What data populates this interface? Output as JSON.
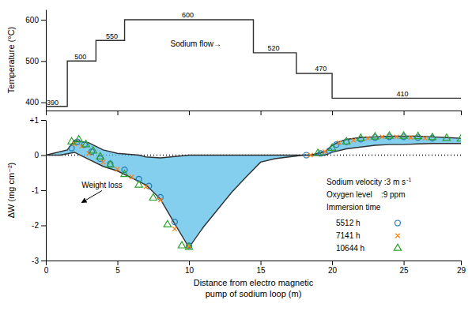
{
  "chart_data": [
    {
      "type": "line",
      "ylabel": "Temperature (°C)",
      "x": [
        0,
        1.5,
        1.5,
        3.5,
        3.5,
        5.5,
        5.5,
        8.0,
        8.0,
        14.5,
        14.5,
        17.5,
        17.5,
        20.0,
        20.0,
        22.5,
        22.5,
        29
      ],
      "series": [
        {
          "color": "#303030",
          "values": [
            390,
            390,
            500,
            500,
            550,
            550,
            600,
            600,
            600,
            600,
            520,
            520,
            470,
            470,
            410,
            410,
            410,
            410
          ]
        }
      ],
      "xlim": [
        0,
        29
      ],
      "xticks": [
        0,
        5,
        10,
        15,
        20,
        25,
        29
      ],
      "tick_labels": "y",
      "ylim": [
        380,
        625
      ],
      "yticks": [
        400,
        500,
        600
      ],
      "annotations": [
        {
          "text": "500",
          "x": 2.0,
          "y": 505
        },
        {
          "text": "550",
          "x": 4.2,
          "y": 555
        },
        {
          "text": "600",
          "x": 9.5,
          "y": 605
        },
        {
          "text": "520",
          "x": 15.5,
          "y": 525
        },
        {
          "text": "470",
          "x": 18.8,
          "y": 475
        },
        {
          "text": "410",
          "x": 24.5,
          "y": 415
        },
        {
          "text": "390",
          "x": 0.05,
          "y": 393
        },
        {
          "text": "Sodium flow→"
        }
      ]
    },
    {
      "type": "scatter",
      "ylabel": "ΔW (mg cm⁻²)",
      "xlabel": [
        "Distance from electro magnetic",
        "pump of sodium loop (m)"
      ],
      "xlim": [
        0,
        29
      ],
      "xticks": [
        0,
        5,
        10,
        15,
        20,
        25,
        29
      ],
      "ylim": [
        -3,
        1
      ],
      "yticks": [
        -3,
        -2,
        -1,
        0,
        {
          "value": 1,
          "label": "+1"
        }
      ],
      "hlines": [
        0
      ],
      "legend": "lower right",
      "series": [
        {
          "type": "band",
          "color": "#5bbee8",
          "upper": {
            "color": "#303030",
            "x": [
              0,
              1.5,
              2.0,
              3.0,
              4.0,
              5.0,
              6.5,
              7.0,
              8.0,
              10.0,
              14.0,
              15.0,
              16.0,
              17.0,
              18.0,
              18.5,
              19.0,
              19.5,
              20.0,
              20.5,
              21.0,
              22.0,
              23.0,
              24.0,
              25.0,
              26.0,
              27.0,
              28.0,
              29
            ],
            "values": [
              0.0,
              0.15,
              0.42,
              0.35,
              0.15,
              0.05,
              0.0,
              -0.05,
              -0.08,
              0.0,
              0.0,
              0.0,
              0.0,
              0.0,
              0.0,
              0.0,
              0.05,
              0.1,
              0.28,
              0.38,
              0.45,
              0.5,
              0.52,
              0.54,
              0.54,
              0.54,
              0.52,
              0.5,
              0.48
            ]
          },
          "lower": {
            "color": "#303030",
            "x": [
              0,
              1.0,
              2.0,
              3.0,
              4.0,
              5.0,
              6.0,
              7.0,
              8.0,
              9.0,
              10.0,
              11.0,
              12.0,
              13.0,
              14.0,
              15.0,
              16.0,
              17.0,
              18.0,
              19.0,
              19.5,
              20.0,
              21.0,
              22.0,
              23.0,
              24.0,
              25.0,
              26.0,
              27.0,
              28.0,
              29
            ],
            "values": [
              0.0,
              0.0,
              0.08,
              -0.12,
              -0.32,
              -0.45,
              -0.65,
              -0.85,
              -1.25,
              -1.95,
              -2.63,
              -2.05,
              -1.55,
              -1.05,
              -0.62,
              -0.2,
              -0.1,
              -0.05,
              0.0,
              0.0,
              0.0,
              0.08,
              0.18,
              0.23,
              0.28,
              0.3,
              0.3,
              0.32,
              0.33,
              0.33,
              0.33
            ]
          }
        },
        {
          "name": "5512 h",
          "marker": "circle",
          "x": [
            1.8,
            2.2,
            2.7,
            3.2,
            3.8,
            4.5,
            5.5,
            6.5,
            7.2,
            8.0,
            9.0,
            10.0,
            18.2,
            19.2,
            19.8,
            20.3,
            21.0,
            22.0,
            23.0,
            24.0,
            25.0,
            26.0,
            27.0
          ],
          "values": [
            0.2,
            0.38,
            0.3,
            0.1,
            -0.1,
            -0.25,
            -0.42,
            -0.68,
            -0.88,
            -1.2,
            -1.9,
            -2.58,
            0.0,
            0.05,
            0.12,
            0.3,
            0.38,
            0.45,
            0.5,
            0.52,
            0.52,
            0.5,
            0.48
          ]
        },
        {
          "name": "7141 h",
          "marker": "x",
          "x": [
            2.0,
            2.5,
            3.0,
            4.0,
            5.0,
            6.0,
            7.0,
            8.0,
            9.0,
            10.0,
            18.5,
            19.5,
            20.5,
            21.5,
            22.5,
            23.5,
            24.5,
            25.5,
            26.5
          ],
          "values": [
            0.32,
            0.25,
            0.05,
            -0.2,
            -0.4,
            -0.62,
            -0.9,
            -1.28,
            -2.1,
            -2.6,
            0.0,
            0.1,
            0.35,
            0.42,
            0.48,
            0.52,
            0.52,
            0.5,
            0.48
          ]
        },
        {
          "name": "10644 h",
          "marker": "triangle",
          "x": [
            1.8,
            2.3,
            2.8,
            3.3,
            3.8,
            4.5,
            5.5,
            6.5,
            7.5,
            8.5,
            9.5,
            10.0,
            19.0,
            20.0,
            21.0,
            22.0,
            23.0,
            24.0,
            25.0,
            26.0,
            27.0,
            28.0,
            29.0
          ],
          "values": [
            0.38,
            0.44,
            0.3,
            0.12,
            -0.05,
            -0.28,
            -0.55,
            -0.85,
            -1.22,
            -1.98,
            -2.58,
            -2.62,
            0.05,
            0.2,
            0.38,
            0.48,
            0.52,
            0.54,
            0.54,
            0.53,
            0.5,
            0.48,
            0.46
          ]
        }
      ],
      "annotations": [
        {
          "text": "Weight loss",
          "x": 2.5,
          "y": -0.78,
          "arrow_x": 2.5,
          "arrow_y": -1.35
        },
        {
          "text": "Sodium velocity :3 m s",
          "superscript": "-1"
        },
        {
          "text": "Oxygen level    :9 ppm"
        },
        {
          "text": "Immersion time"
        }
      ]
    }
  ]
}
